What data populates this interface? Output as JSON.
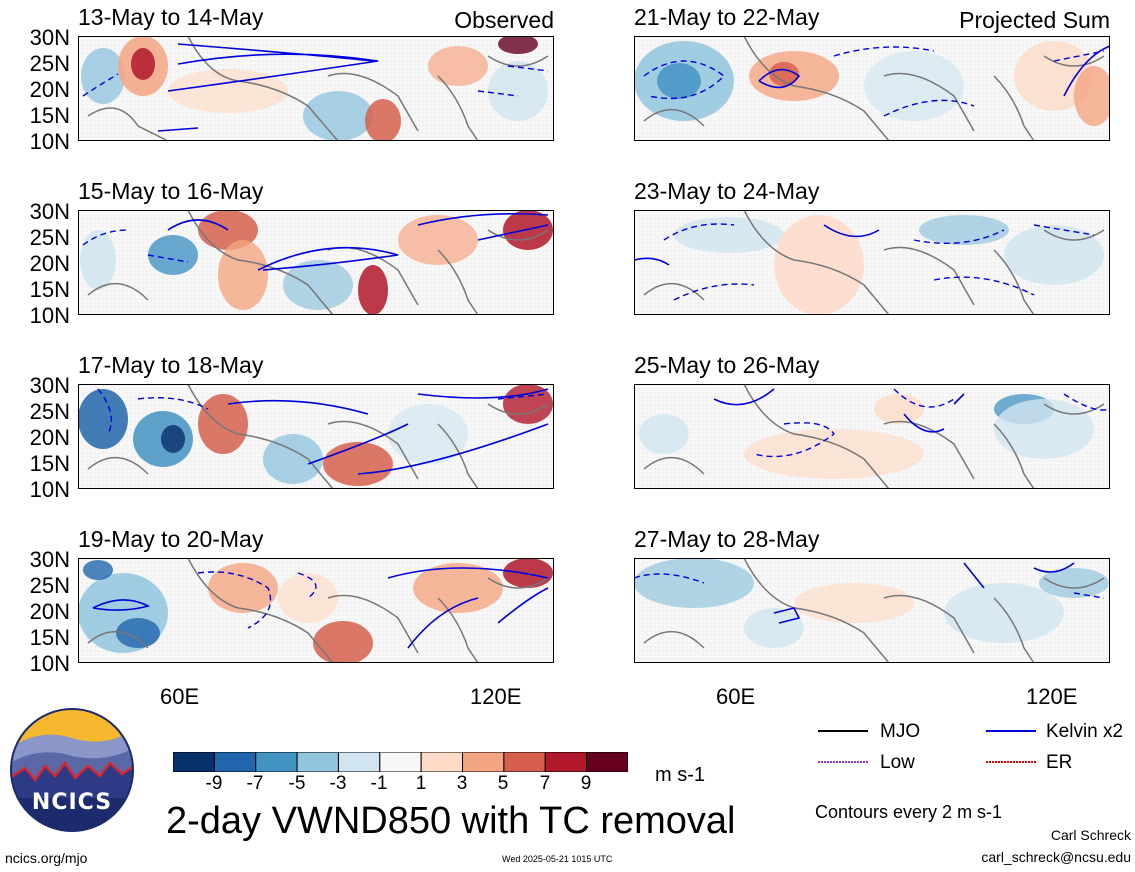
{
  "figure": {
    "main_title": "2-day VWND850 with TC removal",
    "left_column_tag": "Observed",
    "right_column_tag": "Projected Sum",
    "units": "m s-1",
    "contour_note": "Contours every 2 m s-1",
    "author": "Carl Schreck",
    "email": "carl_schreck@ncsu.edu",
    "site": "ncics.org/mjo",
    "timestamp": "Wed 2025-05-21 1015 UTC",
    "logo_text": "NCICS"
  },
  "panels": {
    "obs": [
      {
        "title": "13-May to 14-May"
      },
      {
        "title": "15-May to 16-May"
      },
      {
        "title": "17-May to 18-May"
      },
      {
        "title": "19-May to 20-May"
      }
    ],
    "proj": [
      {
        "title": "21-May to 22-May"
      },
      {
        "title": "23-May to 24-May"
      },
      {
        "title": "25-May to 26-May"
      },
      {
        "title": "27-May to 28-May"
      }
    ]
  },
  "axes": {
    "lat_labels": [
      "30N",
      "25N",
      "20N",
      "15N",
      "10N"
    ],
    "lon_labels": [
      "60E",
      "120E"
    ]
  },
  "colorbar": {
    "labels": [
      "-9",
      "-7",
      "-5",
      "-3",
      "-1",
      "1",
      "3",
      "5",
      "7",
      "9"
    ],
    "colors": [
      "#08306b",
      "#2166ac",
      "#4393c3",
      "#92c5de",
      "#d1e5f0",
      "#f7f7f7",
      "#fddbc7",
      "#f4a582",
      "#d6604d",
      "#b2182b",
      "#67001f"
    ]
  },
  "legend": [
    {
      "label": "MJO",
      "color": "#000000",
      "style": "solid"
    },
    {
      "label": "Kelvin x2",
      "color": "#0000dd",
      "style": "solid"
    },
    {
      "label": "Low",
      "color": "#9933cc",
      "style": "dotted"
    },
    {
      "label": "ER",
      "color": "#dd0000",
      "style": "dotted"
    }
  ]
}
